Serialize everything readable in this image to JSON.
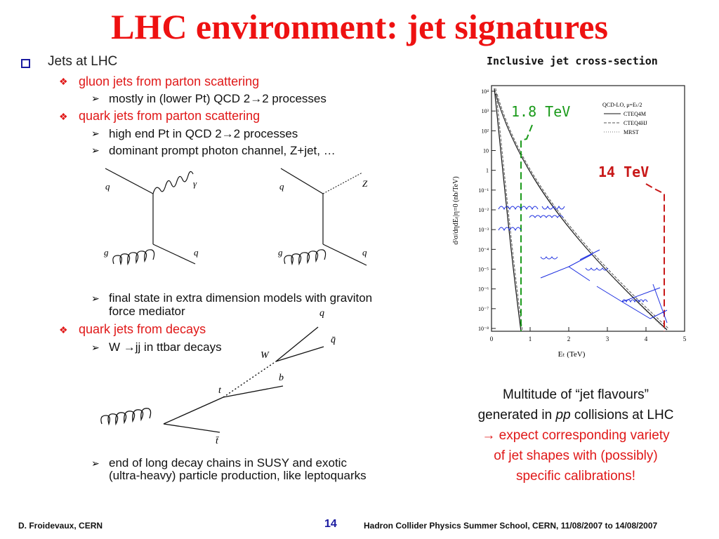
{
  "slide": {
    "title": "LHC environment: jet signatures",
    "page_number": "14",
    "footer_left": "D. Froidevaux, CERN",
    "footer_right": "Hadron Collider Physics Summer School, CERN, 11/08/2007 to 14/08/2007"
  },
  "bullets": {
    "main": "Jets at LHC",
    "gluon": "gluon jets from parton scattering",
    "gluon_sub": "mostly in (lower Pt) QCD 2→2 processes",
    "quark": "quark jets from parton scattering",
    "quark_sub1": "high end Pt in QCD 2→2 processes",
    "quark_sub2": "dominant prompt photon channel, Z+jet, …",
    "quark_sub3": "final state in extra dimension models with graviton",
    "quark_sub3b": "force mediator",
    "decays": "quark jets from decays",
    "decays_sub": "W →jj in ttbar decays",
    "susy1": "end of long decay chains in SUSY and exotic",
    "susy2": "(ultra-heavy) particle production, like leptoquarks"
  },
  "diagram_labels": {
    "q": "q",
    "g": "g",
    "gamma": "γ",
    "Z": "Z",
    "qbar": "q̄",
    "W": "W",
    "t": "t",
    "b": "b",
    "tbar": "t̄"
  },
  "plot": {
    "title": "Inclusive jet cross-section",
    "label_low": "1.8 TeV",
    "label_high": "14 TeV",
    "ylabel": "d²σ/dηdEₜ|η=0   (nb/TeV)",
    "xlabel": "Eₜ   (TeV)",
    "legend_header": "QCD-LO, μ=Eₜ/2",
    "legend": [
      "CTEQ4M",
      "CTEQ4HJ",
      "MRST"
    ],
    "x_ticks": [
      "0",
      "1",
      "2",
      "3",
      "4",
      "5"
    ],
    "y_ticks": [
      "10⁴",
      "10³",
      "10²",
      "10",
      "1",
      "10⁻¹",
      "10⁻²",
      "10⁻³",
      "10⁻⁴",
      "10⁻⁵",
      "10⁻⁶",
      "10⁻⁷",
      "10⁻⁸"
    ],
    "colors": {
      "low": "#1a9a1a",
      "high": "#c81818",
      "overlay": "#1c2ee0"
    }
  },
  "caption": {
    "line1": "Multitude of “jet flavours”",
    "line2a": "generated in ",
    "line2b": "pp",
    "line2c": " collisions at LHC",
    "line3": "→ expect corresponding variety",
    "line4a": "of jet shapes",
    "line4b": " with (possibly)",
    "line5": "specific calibrations!"
  }
}
